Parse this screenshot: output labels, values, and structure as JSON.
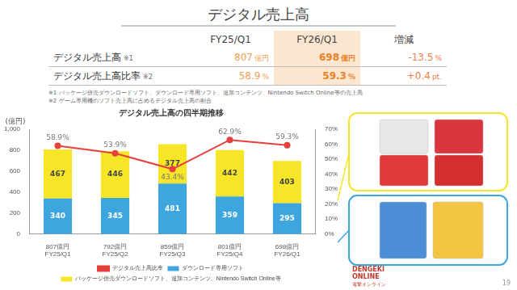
{
  "slide": {
    "title": "デジタル売上高",
    "page_number": "19",
    "watermark": [
      "DENGEKI",
      "ONLINE",
      "電撃オンライン"
    ]
  },
  "table": {
    "header": [
      "FY25/Q1",
      "FY26/Q1",
      "増減"
    ],
    "rows": [
      [
        {
          "text": "デジタル売上高",
          "note": "※1"
        },
        {
          "value": "807",
          "unit": "億円"
        },
        {
          "value": "698",
          "unit": "億円"
        },
        {
          "value": "-13.5",
          "unit": "%"
        }
      ],
      [
        {
          "text": "デジタル売上高比率",
          "note": "※2"
        },
        {
          "value": "58.9",
          "unit": "%"
        },
        {
          "value": "59.3",
          "unit": "%"
        },
        {
          "value": "+0.4",
          "unit": "pt."
        }
      ]
    ]
  },
  "notes": [
    "※1 パッケージ併売ダウンロードソフト、ダウンロード専用ソフト、追加コンテンツ、Nintendo Switch Online等の売上高",
    "※2 ゲーム専用機のソフト売上高に占めるデジタル売上高の割合"
  ],
  "chart_data": {
    "type": "bar",
    "title": "デジタル売上高の四半期推移",
    "y_label": "(億円)",
    "categories": [
      [
        "807億円",
        "FY25/Q1"
      ],
      [
        "792億円",
        "FY25/Q2"
      ],
      [
        "859億円",
        "FY25/Q3"
      ],
      [
        "801億円",
        "FY25/Q4"
      ],
      [
        "698億円",
        "FY26/Q1"
      ]
    ],
    "stacked": true,
    "data_labels": true,
    "legend": "bottom",
    "grid": false,
    "ylim": [
      0,
      1000
    ],
    "yticks": [
      0,
      200,
      400,
      600,
      800,
      {
        "value": 1000,
        "label": "1,000"
      }
    ],
    "y2lim": [
      0,
      70
    ],
    "y2ticks": [
      {
        "value": 0,
        "label": "0%"
      },
      {
        "value": 10,
        "label": "10%"
      },
      {
        "value": 20,
        "label": "20%"
      },
      {
        "value": 30,
        "label": "30%"
      },
      {
        "value": 40,
        "label": "40%"
      },
      {
        "value": 50,
        "label": "50%"
      },
      {
        "value": 60,
        "label": "60%"
      },
      {
        "value": 70,
        "label": "70%"
      }
    ],
    "series": [
      {
        "name": "ダウンロード専用ソフト",
        "color": "#3ea6df",
        "values": [
          340,
          345,
          481,
          359,
          295
        ]
      },
      {
        "name": "パッケージ併売ダウンロードソフト、追加コンテンツ、Nintendo Switch Online等",
        "color": "#f7e628",
        "values": [
          467,
          446,
          377,
          442,
          403
        ]
      },
      {
        "name": "デジタル売上高比率",
        "type": "line",
        "axis": "y2",
        "color": "#e5403b",
        "marker": "circle",
        "values": [
          58.9,
          53.9,
          43.4,
          62.9,
          59.3
        ],
        "value_labels": [
          "58.9%",
          "53.9%",
          "43.4%",
          "62.9%",
          "59.3%"
        ]
      }
    ]
  }
}
